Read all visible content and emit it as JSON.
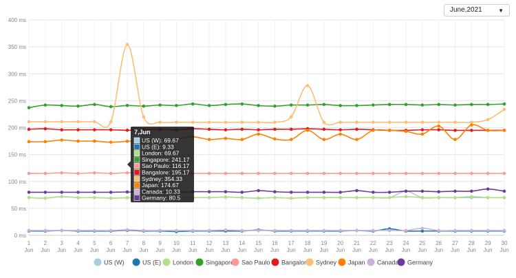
{
  "month_selector": {
    "value": "June,2021"
  },
  "chart_data": {
    "type": "line",
    "y_unit": "ms",
    "ylim": [
      0,
      400
    ],
    "y_ticks": [
      0,
      50,
      100,
      150,
      200,
      250,
      300,
      350,
      400
    ],
    "y_tick_labels": [
      "0 ms",
      "50 ms",
      "100 ms",
      "150 ms",
      "200 ms",
      "250 ms",
      "300 ms",
      "350 ms",
      "400 ms"
    ],
    "x": [
      1,
      2,
      3,
      4,
      5,
      6,
      7,
      8,
      9,
      10,
      11,
      12,
      13,
      14,
      15,
      16,
      17,
      18,
      19,
      20,
      21,
      22,
      23,
      24,
      25,
      26,
      27,
      28,
      29,
      30
    ],
    "x_month_label": "Jun",
    "legend_position": "bottom",
    "series": [
      {
        "name": "US (W)",
        "color": "#a6cee3",
        "values": [
          70,
          69,
          72,
          70,
          70,
          69,
          69.67,
          70,
          70,
          69,
          70,
          70,
          71,
          70,
          69,
          70,
          69,
          70,
          70,
          70,
          70,
          70,
          70,
          82,
          70,
          70,
          70,
          70,
          70,
          70
        ]
      },
      {
        "name": "US (E)",
        "color": "#1f78b4",
        "values": [
          8,
          8,
          9,
          8,
          8,
          8,
          9.33,
          8,
          8,
          7,
          8,
          8,
          8,
          8,
          10,
          8,
          8,
          8,
          8,
          8,
          9,
          8,
          12,
          8,
          8,
          8,
          8,
          8,
          8,
          8
        ]
      },
      {
        "name": "London",
        "color": "#b2df8a",
        "values": [
          70,
          69,
          72,
          70,
          70,
          69,
          69.67,
          70,
          70,
          69,
          70,
          70,
          71,
          70,
          69,
          70,
          69,
          70,
          70,
          70,
          70,
          70,
          70,
          72,
          70,
          70,
          70,
          72,
          70,
          70
        ]
      },
      {
        "name": "Singapore",
        "color": "#33a02c",
        "values": [
          237,
          242,
          241,
          240,
          243,
          239,
          241.17,
          240,
          242,
          241,
          244,
          241,
          243,
          244,
          241,
          240,
          242,
          242,
          243,
          241,
          241,
          242,
          243,
          243,
          242,
          243,
          242,
          243,
          243,
          244
        ]
      },
      {
        "name": "Sao Paulo",
        "color": "#fb9a99",
        "values": [
          115,
          115,
          116,
          115,
          116,
          115,
          116.17,
          115,
          115,
          115,
          115,
          115,
          115,
          115,
          115,
          115,
          115,
          115,
          115,
          115,
          115,
          115,
          115,
          115,
          115,
          115,
          115,
          115,
          115,
          115
        ]
      },
      {
        "name": "Bangalore",
        "color": "#e31a1c",
        "values": [
          197,
          198,
          196,
          196,
          196,
          196,
          195.17,
          196,
          197,
          196,
          198,
          197,
          196,
          197,
          196,
          197,
          197,
          198,
          197,
          196,
          197,
          196,
          195,
          195,
          196,
          196,
          195,
          195,
          195,
          195
        ]
      },
      {
        "name": "Sydney",
        "color": "#fdbf6f",
        "values": [
          211,
          211,
          211,
          211,
          211,
          211,
          354.33,
          220,
          210,
          210,
          210,
          210,
          210,
          210,
          210,
          210,
          220,
          278,
          210,
          210,
          210,
          210,
          210,
          210,
          210,
          210,
          210,
          210,
          215,
          234
        ]
      },
      {
        "name": "Japan",
        "color": "#ff7f00",
        "values": [
          174,
          174,
          177,
          175,
          175,
          173,
          174.67,
          176,
          178,
          179,
          183,
          178,
          180,
          178,
          188,
          179,
          178,
          195,
          178,
          188,
          178,
          195,
          195,
          193,
          188,
          203,
          178,
          205,
          195,
          195
        ]
      },
      {
        "name": "Canada",
        "color": "#cab2d6",
        "values": [
          9,
          9,
          9,
          9,
          9,
          9,
          10.33,
          9,
          9,
          9,
          9,
          9,
          10,
          9,
          9,
          9,
          9,
          9,
          9,
          9,
          9,
          9,
          9,
          9,
          13,
          9,
          9,
          9,
          9,
          9
        ]
      },
      {
        "name": "Germany",
        "color": "#6a3d9a",
        "values": [
          80,
          80,
          80,
          80,
          80,
          80,
          80.5,
          80,
          80,
          80,
          81,
          81,
          81,
          80,
          83,
          81,
          80,
          80,
          80,
          80,
          83,
          80,
          80,
          82,
          82,
          81,
          82,
          82,
          86,
          82
        ]
      }
    ],
    "tooltip": {
      "title": "7,Jun",
      "index": 6,
      "rows": [
        "US (W): 69.67",
        "US (E): 9.33",
        "London: 69.67",
        "Singapore: 241.17",
        "Sao Paulo: 116.17",
        "Bangalore: 195.17",
        "Sydney: 354.33",
        "Japan: 174.67",
        "Canada: 10.33",
        "Germany: 80.5"
      ]
    }
  }
}
